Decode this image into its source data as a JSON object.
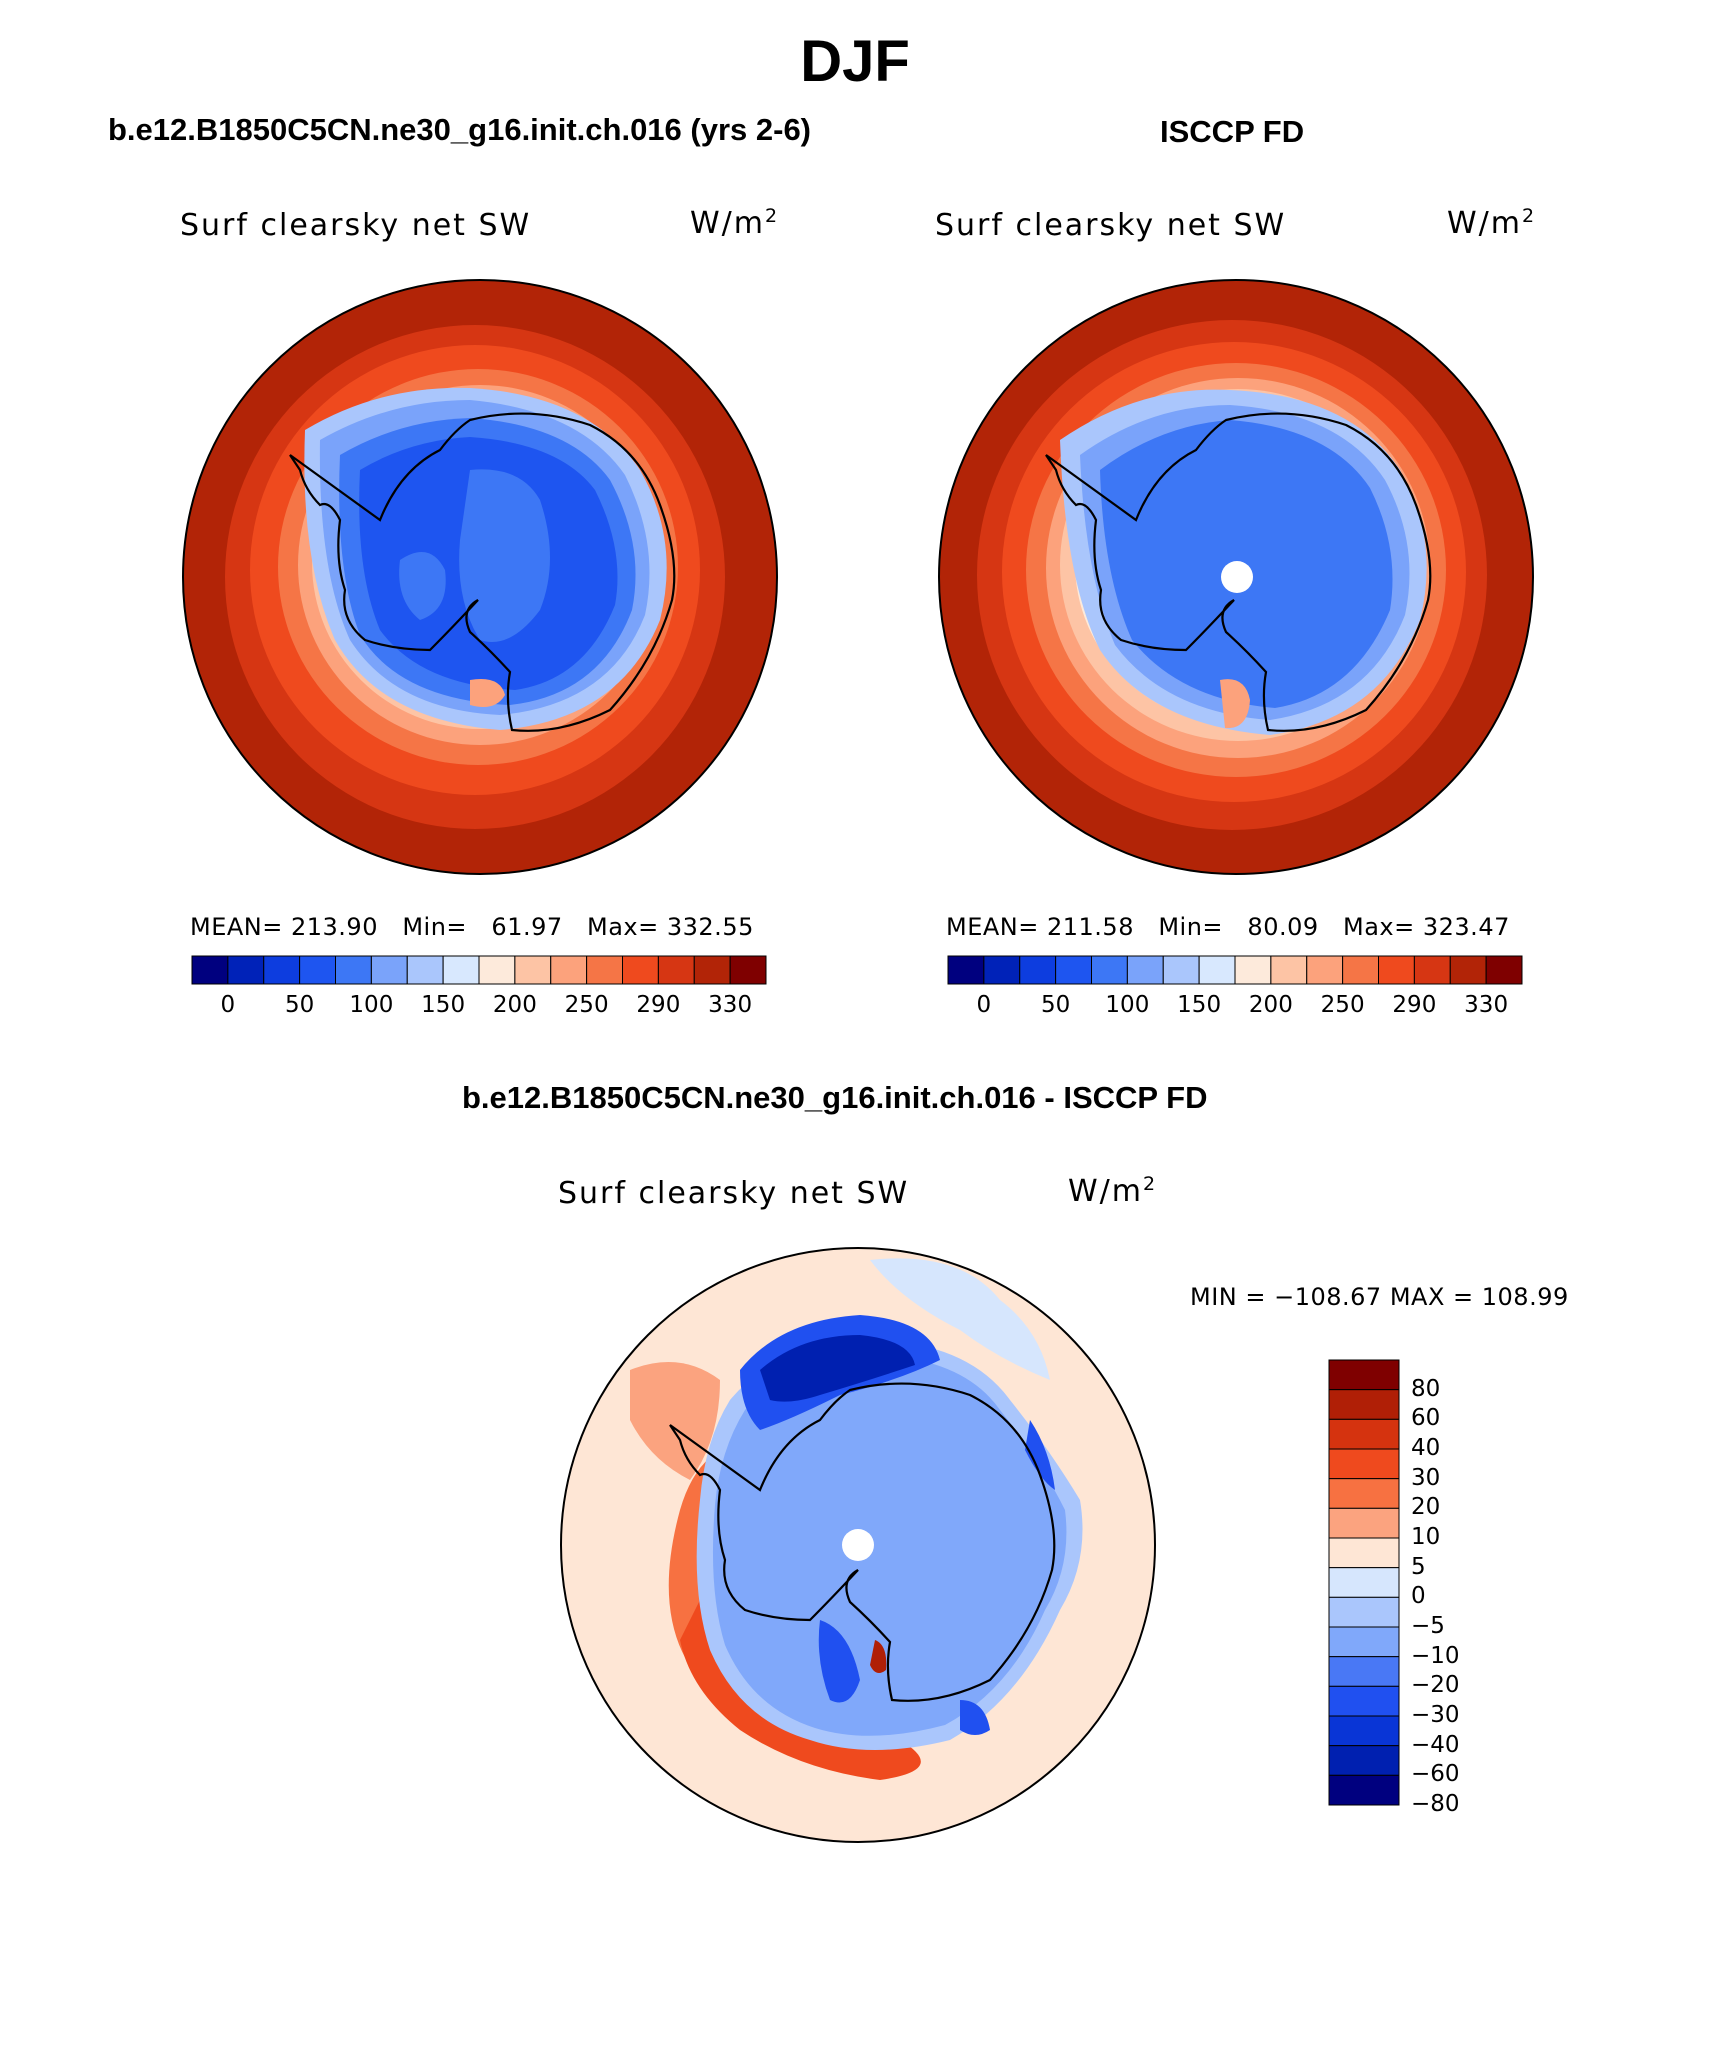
{
  "title": "DJF",
  "panels": [
    {
      "id": "model",
      "header": "b.e12.B1850C5CN.ne30_g16.init.ch.016 (yrs 2-6)",
      "variable": "Surf clearsky net SW",
      "units": "W/m",
      "units_exp": "2",
      "stats": "MEAN= 213.90   Min=   61.97   Max= 332.55",
      "colorbar_labels": [
        "0",
        "50",
        "100",
        "150",
        "200",
        "250",
        "290",
        "330"
      ],
      "has_pole_hole": false
    },
    {
      "id": "obs",
      "header": "ISCCP FD",
      "variable": "Surf clearsky net SW",
      "units": "W/m",
      "units_exp": "2",
      "stats": "MEAN= 211.58   Min=   80.09   Max= 323.47",
      "colorbar_labels": [
        "0",
        "50",
        "100",
        "150",
        "200",
        "250",
        "290",
        "330"
      ],
      "has_pole_hole": true
    },
    {
      "id": "diff",
      "header": "b.e12.B1850C5CN.ne30_g16.init.ch.016 - ISCCP FD",
      "variable": "Surf clearsky net SW",
      "units": "W/m",
      "units_exp": "2",
      "stats": "MIN = −108.67 MAX = 108.99",
      "colorbar_labels": [
        "80",
        "60",
        "40",
        "30",
        "20",
        "10",
        "5",
        "0",
        "−5",
        "−10",
        "−20",
        "−30",
        "−40",
        "−60",
        "−80"
      ],
      "has_pole_hole": true
    }
  ],
  "colors": {
    "abs_scale": [
      "#00007f",
      "#0022b8",
      "#0d3ddf",
      "#1e55f0",
      "#3d77f5",
      "#7aa3fa",
      "#aac6fc",
      "#d8e8fe",
      "#fdeadb",
      "#fdc4a5",
      "#fca27c",
      "#f57546",
      "#ef4a1e",
      "#d63613",
      "#b22407",
      "#7f0000"
    ],
    "diff_scale": [
      "#7f0000",
      "#b01f06",
      "#d5330f",
      "#ef4a1e",
      "#f77141",
      "#fba37f",
      "#fee6d5",
      "#d6e6fd",
      "#aac6fc",
      "#80a8fa",
      "#4978f5",
      "#2050f0",
      "#0935d6",
      "#0020b0",
      "#00007f"
    ],
    "coast": "#000000",
    "frame": "#000000"
  }
}
